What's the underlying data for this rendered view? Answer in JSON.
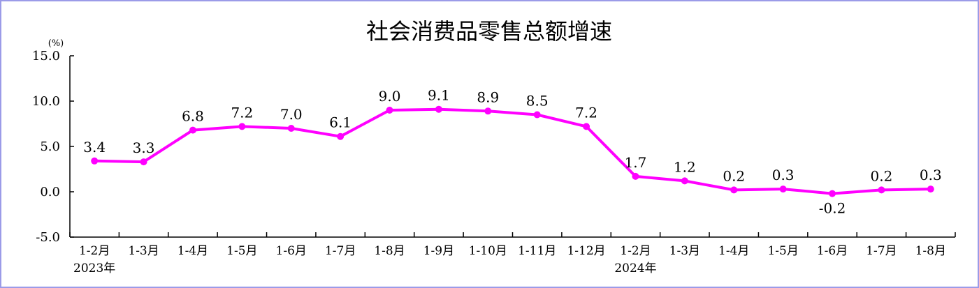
{
  "chart_data": {
    "type": "line",
    "title": "社会消费品零售总额增速",
    "unit_label": "(%)",
    "ylim": [
      -5.0,
      15.0
    ],
    "y_ticks": [
      "15.0",
      "10.0",
      "5.0",
      "0.0",
      "-5.0"
    ],
    "y_tick_values": [
      15,
      10,
      5,
      0,
      -5
    ],
    "categories": [
      "1-2月",
      "1-3月",
      "1-4月",
      "1-5月",
      "1-6月",
      "1-7月",
      "1-8月",
      "1-9月",
      "1-10月",
      "1-11月",
      "1-12月",
      "1-2月",
      "1-3月",
      "1-4月",
      "1-5月",
      "1-6月",
      "1-7月",
      "1-8月"
    ],
    "year_labels": [
      {
        "text": "2023年",
        "category_index": 0
      },
      {
        "text": "2024年",
        "category_index": 11
      }
    ],
    "series": [
      {
        "values": [
          3.4,
          3.3,
          6.8,
          7.2,
          7.0,
          6.1,
          9.0,
          9.1,
          8.9,
          8.5,
          7.2,
          1.7,
          1.2,
          0.2,
          0.3,
          -0.2,
          0.2,
          0.3
        ],
        "labels": [
          "3.4",
          "3.3",
          "6.8",
          "7.2",
          "7.0",
          "6.1",
          "9.0",
          "9.1",
          "8.9",
          "8.5",
          "7.2",
          "1.7",
          "1.2",
          "0.2",
          "0.3",
          "-0.2",
          "0.2",
          "0.3"
        ],
        "color": "#ff00ff"
      }
    ],
    "grid": false,
    "legend": "none"
  },
  "colors": {
    "line": "#ff00ff",
    "axis": "#000000",
    "frame": "#9b9be8"
  }
}
